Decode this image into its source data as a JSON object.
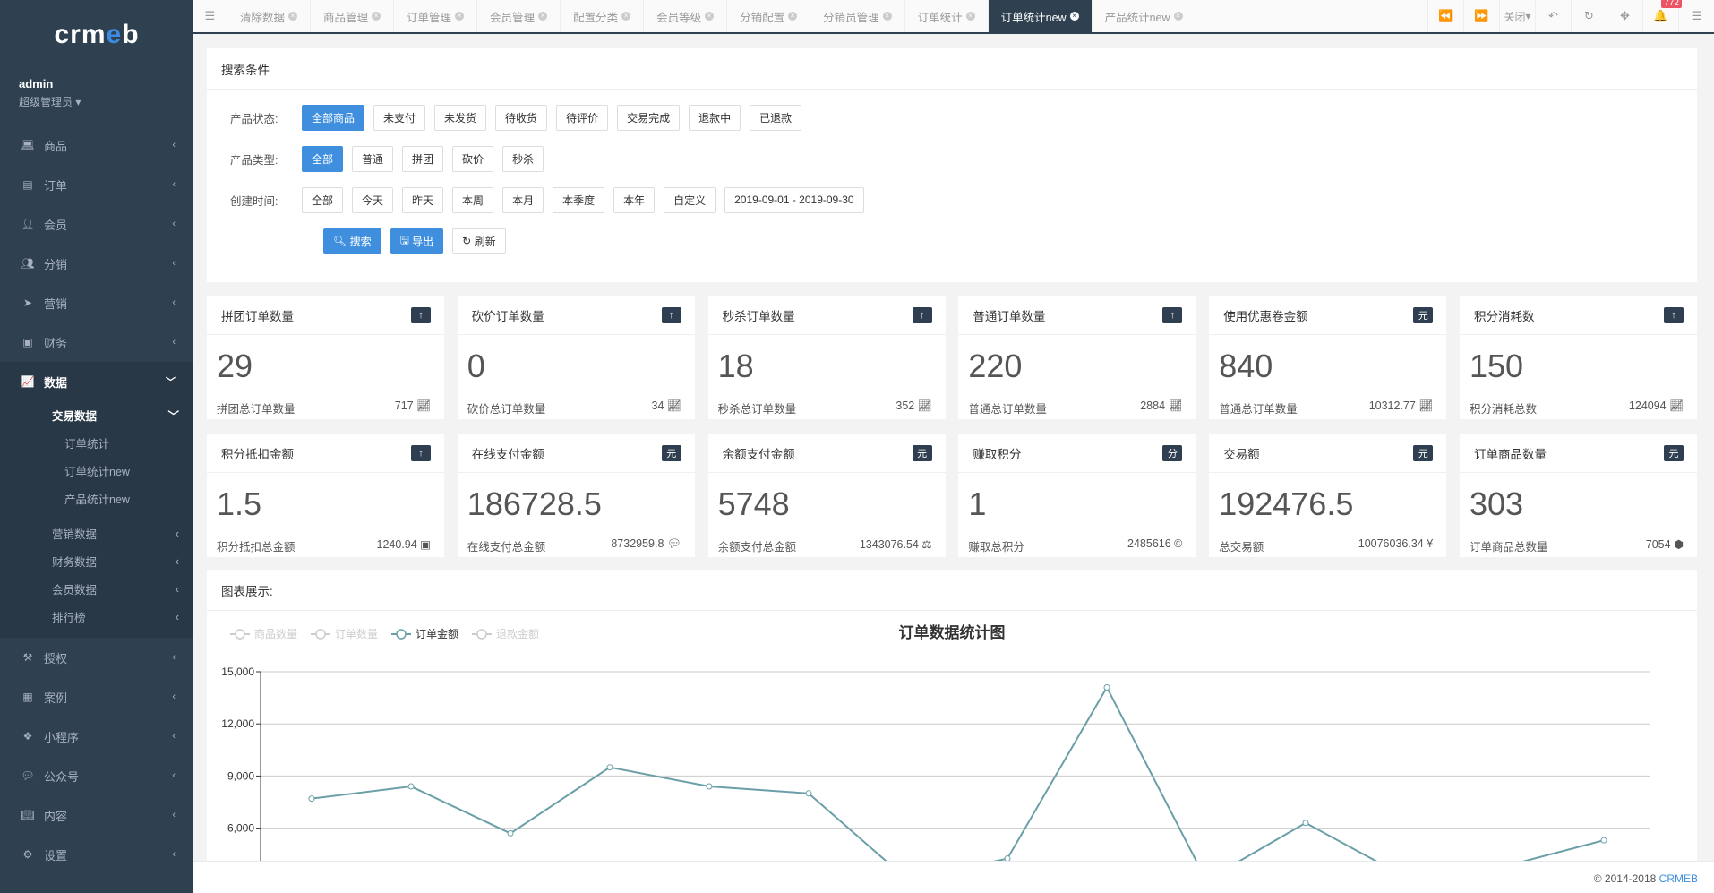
{
  "sidebar": {
    "logo": "crmeb",
    "user": "admin",
    "role": "超级管理员",
    "items": [
      {
        "label": "商品",
        "icon": "laptop"
      },
      {
        "label": "订单",
        "icon": "list-alt"
      },
      {
        "label": "会员",
        "icon": "user"
      },
      {
        "label": "分销",
        "icon": "users"
      },
      {
        "label": "营销",
        "icon": "paper-plane"
      },
      {
        "label": "财务",
        "icon": "money"
      }
    ],
    "active": {
      "label": "数据",
      "icon": "line-chart",
      "group": "交易数据",
      "subs": [
        "订单统计",
        "订单统计new",
        "产品统计new"
      ],
      "others": [
        "营销数据",
        "财务数据",
        "会员数据",
        "排行榜"
      ]
    },
    "items2": [
      {
        "label": "授权",
        "icon": "gavel"
      },
      {
        "label": "案例",
        "icon": "newspaper"
      },
      {
        "label": "小程序",
        "icon": "cubes"
      },
      {
        "label": "公众号",
        "icon": "wechat"
      },
      {
        "label": "内容",
        "icon": "book"
      },
      {
        "label": "设置",
        "icon": "gear"
      }
    ]
  },
  "tabs": [
    "清除数据",
    "商品管理",
    "订单管理",
    "会员管理",
    "配置分类",
    "会员等级",
    "分销配置",
    "分销员管理",
    "订单统计",
    "订单统计new",
    "产品统计new"
  ],
  "active_tab": "订单统计new",
  "toolbar": {
    "close": "关闭",
    "notifications": "772"
  },
  "search": {
    "title": "搜索条件",
    "status_label": "产品状态:",
    "status": [
      "全部商品",
      "未支付",
      "未发货",
      "待收货",
      "待评价",
      "交易完成",
      "退款中",
      "已退款"
    ],
    "status_selected": "全部商品",
    "type_label": "产品类型:",
    "types": [
      "全部",
      "普通",
      "拼团",
      "砍价",
      "秒杀"
    ],
    "type_selected": "全部",
    "time_label": "创建时间:",
    "times": [
      "全部",
      "今天",
      "昨天",
      "本周",
      "本月",
      "本季度",
      "本年",
      "自定义"
    ],
    "date_range": "2019-09-01 - 2019-09-30",
    "search_btn": "搜索",
    "export_btn": "导出",
    "refresh_btn": "刷新"
  },
  "cards": [
    {
      "title": "拼团订单数量",
      "badge": "↑",
      "value": "29",
      "sub": "拼团总订单数量",
      "total": "717",
      "icon": "line-chart"
    },
    {
      "title": "砍价订单数量",
      "badge": "↑",
      "value": "0",
      "sub": "砍价总订单数量",
      "total": "34",
      "icon": "line-chart"
    },
    {
      "title": "秒杀订单数量",
      "badge": "↑",
      "value": "18",
      "sub": "秒杀总订单数量",
      "total": "352",
      "icon": "line-chart"
    },
    {
      "title": "普通订单数量",
      "badge": "↑",
      "value": "220",
      "sub": "普通总订单数量",
      "total": "2884",
      "icon": "line-chart"
    },
    {
      "title": "使用优惠卷金额",
      "badge": "元",
      "value": "840",
      "sub": "普通总订单数量",
      "total": "10312.77",
      "icon": "line-chart"
    },
    {
      "title": "积分消耗数",
      "badge": "↑",
      "value": "150",
      "sub": "积分消耗总数",
      "total": "124094",
      "icon": "line-chart"
    },
    {
      "title": "积分抵扣金额",
      "badge": "↑",
      "value": "1.5",
      "sub": "积分抵扣总金额",
      "total": "1240.94",
      "icon": "money"
    },
    {
      "title": "在线支付金额",
      "badge": "元",
      "value": "186728.5",
      "sub": "在线支付总金额",
      "total": "8732959.8",
      "icon": "wechat"
    },
    {
      "title": "余额支付金额",
      "badge": "元",
      "value": "5748",
      "sub": "余额支付总金额",
      "total": "1343076.54",
      "icon": "balance-scale"
    },
    {
      "title": "赚取积分",
      "badge": "分",
      "value": "1",
      "sub": "赚取总积分",
      "total": "2485616",
      "icon": "copyright"
    },
    {
      "title": "交易额",
      "badge": "元",
      "value": "192476.5",
      "sub": "总交易额",
      "total": "10076036.34",
      "icon": "yen"
    },
    {
      "title": "订单商品数量",
      "badge": "元",
      "value": "303",
      "sub": "订单商品总数量",
      "total": "7054",
      "icon": "cube"
    }
  ],
  "chart_panel": {
    "title": "图表展示:"
  },
  "chart_data": {
    "type": "line",
    "title": "订单数据统计图",
    "legend": [
      "商品数量",
      "订单数量",
      "订单金额",
      "退款金额"
    ],
    "active_series": "订单金额",
    "legend_placement": "top-left",
    "grid": true,
    "yticks": [
      "15,000",
      "12,000",
      "9,000",
      "6,000"
    ],
    "ylim": [
      0,
      15000
    ],
    "series": [
      {
        "name": "订单金额",
        "color": "#6a9fa8",
        "values": [
          7700,
          8400,
          5700,
          9500,
          8400,
          8000,
          3000,
          4250,
          14100,
          3000,
          6300,
          3200,
          3800,
          5300
        ]
      }
    ]
  },
  "footer": {
    "copyright": "© 2014-2018 ",
    "brand": "CRMEB"
  }
}
